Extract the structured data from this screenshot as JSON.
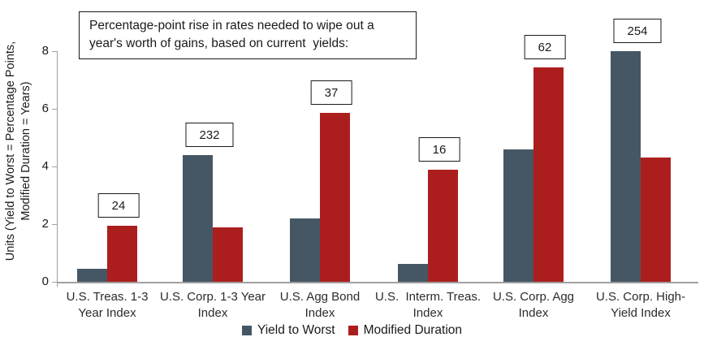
{
  "chart_data": {
    "type": "bar",
    "title_lines": [
      "Percentage-point rise in rates needed to wipe out a",
      "year's worth of gains, based on current  yields:"
    ],
    "y_axis_title_lines": [
      "Units (Yield to Worst = Percentage Points,",
      "Modified Duration = Years)"
    ],
    "categories": [
      [
        "U.S. Treas. 1-3",
        "Year Index"
      ],
      [
        "U.S. Corp. 1-3 Year",
        "Index"
      ],
      [
        "U.S. Agg Bond",
        "Index"
      ],
      [
        "U.S.  Interm. Treas.",
        "Index"
      ],
      [
        "U.S. Corp. Agg",
        "Index"
      ],
      [
        "U.S. Corp. High-",
        "Yield Index"
      ]
    ],
    "series": [
      {
        "name": "Yield to Worst",
        "color": "#455765",
        "values": [
          0.45,
          4.4,
          2.2,
          0.62,
          4.6,
          8.0
        ]
      },
      {
        "name": "Modified Duration",
        "color": "#AC1E1E",
        "values": [
          1.93,
          1.9,
          5.85,
          3.88,
          7.45,
          4.3
        ]
      }
    ],
    "bar_labels": [
      "24",
      "232",
      "37",
      "16",
      "62",
      "254"
    ],
    "y_ticks": [
      0,
      2,
      4,
      6,
      8
    ],
    "ylim": [
      0,
      8
    ],
    "grid": false,
    "legend_position": "bottom",
    "axis_color": "#a0a0a0",
    "text_color": "#1a1a1a"
  }
}
